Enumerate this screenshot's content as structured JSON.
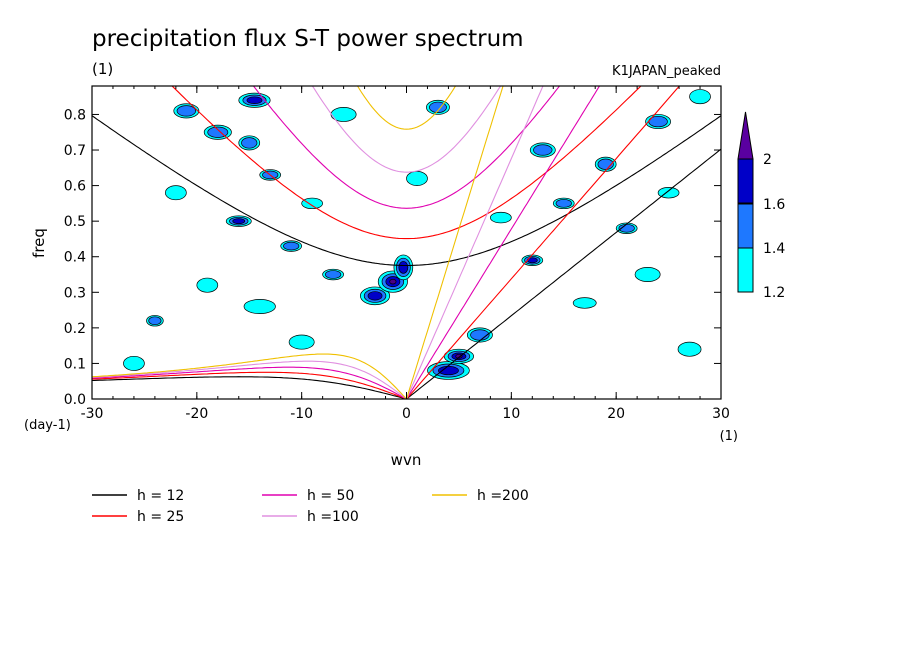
{
  "chart_data": {
    "type": "heatmap",
    "title": "precipitation flux S-T power spectrum",
    "subtitle_left": "(1)",
    "subtitle_right": "K1JAPAN_peaked",
    "xlabel": "wvn",
    "ylabel": "freq",
    "x_unit": "(1)",
    "y_unit": "(day-1)",
    "xlim": [
      -30,
      30
    ],
    "ylim": [
      0,
      0.88
    ],
    "x_ticks": [
      -30,
      -20,
      -10,
      0,
      10,
      20,
      30
    ],
    "x_tick_labels": [
      "-30",
      "-20",
      "-10",
      "0",
      "10",
      "20",
      "30"
    ],
    "y_ticks": [
      0,
      0.1,
      0.2,
      0.3,
      0.4,
      0.5,
      0.6,
      0.7,
      0.8
    ],
    "y_tick_labels": [
      "0.0",
      "0.1",
      "0.2",
      "0.3",
      "0.4",
      "0.5",
      "0.6",
      "0.7",
      "0.8"
    ],
    "colorbar": {
      "levels": [
        1.2,
        1.4,
        1.6,
        2
      ],
      "labels": [
        "1.2",
        "1.4",
        "1.6",
        "2"
      ],
      "colors": [
        "#00ffff",
        "#1e78ff",
        "#0000c8",
        "#5a00a0"
      ]
    },
    "contours": {
      "colors": [
        "#00ffff",
        "#1e78ff",
        "#0000c8",
        "#4b0082"
      ],
      "blobs": [
        {
          "x": -26,
          "y": 0.1,
          "rx": 1.0,
          "ry": 0.02,
          "level": 0
        },
        {
          "x": -24,
          "y": 0.22,
          "rx": 0.8,
          "ry": 0.015,
          "level": 1
        },
        {
          "x": -22,
          "y": 0.58,
          "rx": 1.0,
          "ry": 0.02,
          "level": 0
        },
        {
          "x": -21,
          "y": 0.81,
          "rx": 1.2,
          "ry": 0.02,
          "level": 1
        },
        {
          "x": -19,
          "y": 0.32,
          "rx": 1.0,
          "ry": 0.02,
          "level": 0
        },
        {
          "x": -18,
          "y": 0.75,
          "rx": 1.3,
          "ry": 0.02,
          "level": 1
        },
        {
          "x": -16,
          "y": 0.5,
          "rx": 1.2,
          "ry": 0.015,
          "level": 2
        },
        {
          "x": -15,
          "y": 0.72,
          "rx": 1.0,
          "ry": 0.02,
          "level": 1
        },
        {
          "x": -14,
          "y": 0.26,
          "rx": 1.5,
          "ry": 0.02,
          "level": 0
        },
        {
          "x": -13,
          "y": 0.63,
          "rx": 1.0,
          "ry": 0.015,
          "level": 1
        },
        {
          "x": -11,
          "y": 0.43,
          "rx": 1.0,
          "ry": 0.015,
          "level": 1
        },
        {
          "x": -10,
          "y": 0.16,
          "rx": 1.2,
          "ry": 0.02,
          "level": 0
        },
        {
          "x": -9,
          "y": 0.55,
          "rx": 1.0,
          "ry": 0.015,
          "level": 0
        },
        {
          "x": -7,
          "y": 0.35,
          "rx": 1.0,
          "ry": 0.015,
          "level": 1
        },
        {
          "x": -6,
          "y": 0.8,
          "rx": 1.2,
          "ry": 0.02,
          "level": 0
        },
        {
          "x": -14.5,
          "y": 0.84,
          "rx": 1.5,
          "ry": 0.02,
          "level": 2
        },
        {
          "x": -3,
          "y": 0.29,
          "rx": 1.4,
          "ry": 0.025,
          "level": 2
        },
        {
          "x": -1.3,
          "y": 0.33,
          "rx": 1.4,
          "ry": 0.03,
          "level": 3
        },
        {
          "x": -0.3,
          "y": 0.37,
          "rx": 0.9,
          "ry": 0.035,
          "level": 2
        },
        {
          "x": 1,
          "y": 0.62,
          "rx": 1.0,
          "ry": 0.02,
          "level": 0
        },
        {
          "x": 3,
          "y": 0.82,
          "rx": 1.1,
          "ry": 0.02,
          "level": 1
        },
        {
          "x": 4,
          "y": 0.08,
          "rx": 2.0,
          "ry": 0.025,
          "level": 2
        },
        {
          "x": 5,
          "y": 0.12,
          "rx": 1.4,
          "ry": 0.02,
          "level": 3
        },
        {
          "x": 7,
          "y": 0.18,
          "rx": 1.2,
          "ry": 0.02,
          "level": 1
        },
        {
          "x": 9,
          "y": 0.51,
          "rx": 1.0,
          "ry": 0.015,
          "level": 0
        },
        {
          "x": 12,
          "y": 0.39,
          "rx": 1.0,
          "ry": 0.015,
          "level": 2
        },
        {
          "x": 13,
          "y": 0.7,
          "rx": 1.2,
          "ry": 0.02,
          "level": 1
        },
        {
          "x": 15,
          "y": 0.55,
          "rx": 1.0,
          "ry": 0.015,
          "level": 1
        },
        {
          "x": 17,
          "y": 0.27,
          "rx": 1.1,
          "ry": 0.015,
          "level": 0
        },
        {
          "x": 19,
          "y": 0.66,
          "rx": 1.0,
          "ry": 0.02,
          "level": 1
        },
        {
          "x": 21,
          "y": 0.48,
          "rx": 1.0,
          "ry": 0.015,
          "level": 1
        },
        {
          "x": 23,
          "y": 0.35,
          "rx": 1.2,
          "ry": 0.02,
          "level": 0
        },
        {
          "x": 24,
          "y": 0.78,
          "rx": 1.2,
          "ry": 0.02,
          "level": 1
        },
        {
          "x": 25,
          "y": 0.58,
          "rx": 1.0,
          "ry": 0.015,
          "level": 0
        },
        {
          "x": 27,
          "y": 0.14,
          "rx": 1.1,
          "ry": 0.02,
          "level": 0
        },
        {
          "x": 28,
          "y": 0.85,
          "rx": 1.0,
          "ry": 0.02,
          "level": 0
        }
      ]
    },
    "series": [
      {
        "name": "h = 12",
        "h": 12,
        "color": "#000000"
      },
      {
        "name": "h = 25",
        "h": 25,
        "color": "#ff0000"
      },
      {
        "name": "h = 50",
        "h": 50,
        "color": "#e000b0"
      },
      {
        "name": "h =100",
        "h": 100,
        "color": "#e090e0"
      },
      {
        "name": "h =200",
        "h": 200,
        "color": "#f0c000"
      }
    ]
  }
}
